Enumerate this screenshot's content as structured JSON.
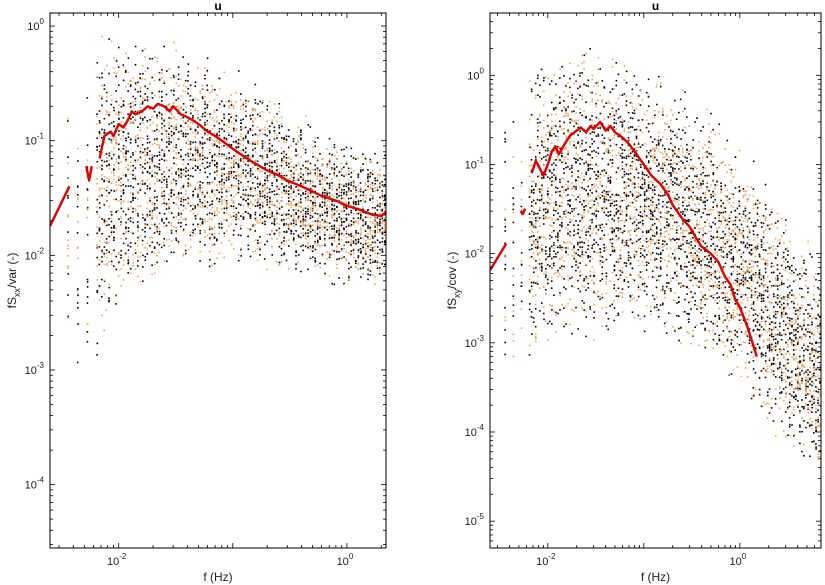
{
  "chart_data": [
    {
      "type": "scatter",
      "title": "u",
      "xlabel": "f (Hz)",
      "ylabel_main": "fS",
      "ylabel_sub": "xx",
      "ylabel_tail": "/var (-)",
      "xscale": "log",
      "yscale": "log",
      "xlim": [
        0.0025,
        2.2
      ],
      "ylim": [
        2.8e-05,
        1.3
      ],
      "xticks": [
        0.01,
        1
      ],
      "xtick_labels": [
        {
          "base": "10",
          "exp": "-2"
        },
        {
          "base": "10",
          "exp": "0"
        }
      ],
      "yticks": [
        0.0001,
        0.001,
        0.01,
        0.1,
        1
      ],
      "ytick_labels": [
        {
          "base": "10",
          "exp": "-4"
        },
        {
          "base": "10",
          "exp": "-3"
        },
        {
          "base": "10",
          "exp": "-2"
        },
        {
          "base": "10",
          "exp": "-1"
        },
        {
          "base": "10",
          "exp": "0"
        }
      ],
      "scatter_colors": [
        "#000000",
        "#f4a460"
      ],
      "scatter_envelope": {
        "x": [
          0.004,
          0.0055,
          0.008,
          0.015,
          0.03,
          0.06,
          0.12,
          0.25,
          0.5,
          1.0,
          2.0
        ],
        "lo": [
          0.0005,
          0.0004,
          0.002,
          0.004,
          0.006,
          0.007,
          0.008,
          0.007,
          0.006,
          0.005,
          0.005
        ],
        "hi": [
          0.6,
          0.8,
          1.0,
          0.9,
          0.8,
          0.6,
          0.4,
          0.25,
          0.15,
          0.1,
          0.08
        ]
      },
      "series": [
        {
          "color": "#e00000",
          "segments": [
            {
              "x": [
                0.0025,
                0.0037
              ],
              "y": [
                0.018,
                0.04
              ]
            },
            {
              "x": [
                0.0052,
                0.0055,
                0.0058
              ],
              "y": [
                0.06,
                0.045,
                0.06
              ]
            },
            {
              "x": [
                0.0068,
                0.0075,
                0.0085,
                0.009,
                0.01,
                0.011,
                0.012,
                0.013,
                0.014,
                0.016,
                0.018,
                0.02,
                0.022,
                0.025,
                0.028,
                0.03,
                0.035,
                0.04,
                0.045,
                0.05,
                0.06,
                0.07,
                0.08,
                0.1,
                0.12,
                0.15,
                0.2,
                0.25,
                0.3,
                0.4,
                0.5,
                0.6,
                0.8,
                1.0,
                1.3,
                1.6,
                2.0,
                2.2
              ],
              "y": [
                0.07,
                0.11,
                0.12,
                0.11,
                0.14,
                0.13,
                0.15,
                0.18,
                0.17,
                0.18,
                0.2,
                0.19,
                0.21,
                0.2,
                0.18,
                0.2,
                0.17,
                0.16,
                0.15,
                0.14,
                0.12,
                0.11,
                0.1,
                0.085,
                0.075,
                0.065,
                0.055,
                0.05,
                0.045,
                0.04,
                0.036,
                0.033,
                0.03,
                0.027,
                0.025,
                0.023,
                0.022,
                0.024
              ]
            }
          ]
        }
      ]
    },
    {
      "type": "scatter",
      "title": "u",
      "xlabel": "f (Hz)",
      "ylabel_main": "fS",
      "ylabel_sub": "xy",
      "ylabel_tail": "/cov (-)",
      "xscale": "log",
      "yscale": "log",
      "xlim": [
        0.0025,
        7
      ],
      "ylim": [
        5e-06,
        5
      ],
      "xticks": [
        0.01,
        1
      ],
      "xtick_labels": [
        {
          "base": "10",
          "exp": "-2"
        },
        {
          "base": "10",
          "exp": "0"
        }
      ],
      "yticks": [
        1e-05,
        0.0001,
        0.001,
        0.01,
        0.1,
        1
      ],
      "ytick_labels": [
        {
          "base": "10",
          "exp": "-5"
        },
        {
          "base": "10",
          "exp": "-4"
        },
        {
          "base": "10",
          "exp": "-3"
        },
        {
          "base": "10",
          "exp": "-2"
        },
        {
          "base": "10",
          "exp": "-1"
        },
        {
          "base": "10",
          "exp": "0"
        }
      ],
      "scatter_colors": [
        "#000000",
        "#f4a460"
      ],
      "scatter_envelope": {
        "x": [
          0.004,
          0.0055,
          0.008,
          0.015,
          0.03,
          0.06,
          0.12,
          0.25,
          0.5,
          1.0,
          2.0,
          4.0,
          6.5
        ],
        "lo": [
          0.0003,
          0.0002,
          0.0005,
          0.0008,
          0.001,
          0.001,
          0.001,
          0.0008,
          0.0005,
          0.0003,
          0.0001,
          5e-05,
          3e-05
        ],
        "hi": [
          0.4,
          0.8,
          2.0,
          3.0,
          2.5,
          2.0,
          1.2,
          0.8,
          0.4,
          0.2,
          0.06,
          0.02,
          0.01
        ]
      },
      "series": [
        {
          "color": "#e00000",
          "segments": [
            {
              "x": [
                0.0025,
                0.0037
              ],
              "y": [
                0.0065,
                0.013
              ]
            },
            {
              "x": [
                0.0052,
                0.0055,
                0.0058
              ],
              "y": [
                0.03,
                0.028,
                0.032
              ]
            },
            {
              "x": [
                0.0068,
                0.0075,
                0.0085,
                0.009,
                0.01,
                0.011,
                0.012,
                0.013,
                0.015,
                0.017,
                0.02,
                0.022,
                0.025,
                0.028,
                0.03,
                0.035,
                0.04,
                0.045,
                0.05,
                0.06,
                0.07,
                0.08,
                0.1,
                0.12,
                0.15,
                0.18,
                0.2,
                0.25,
                0.3,
                0.35,
                0.4,
                0.5,
                0.6,
                0.7,
                0.8,
                0.9,
                1.0,
                1.2,
                1.5
              ],
              "y": [
                0.08,
                0.11,
                0.085,
                0.075,
                0.1,
                0.14,
                0.16,
                0.13,
                0.17,
                0.21,
                0.24,
                0.26,
                0.23,
                0.27,
                0.25,
                0.3,
                0.24,
                0.27,
                0.23,
                0.2,
                0.17,
                0.14,
                0.1,
                0.075,
                0.06,
                0.045,
                0.035,
                0.025,
                0.02,
                0.015,
                0.012,
                0.01,
                0.008,
                0.0055,
                0.0045,
                0.003,
                0.0025,
                0.0015,
                0.0007
              ]
            }
          ]
        }
      ]
    }
  ]
}
